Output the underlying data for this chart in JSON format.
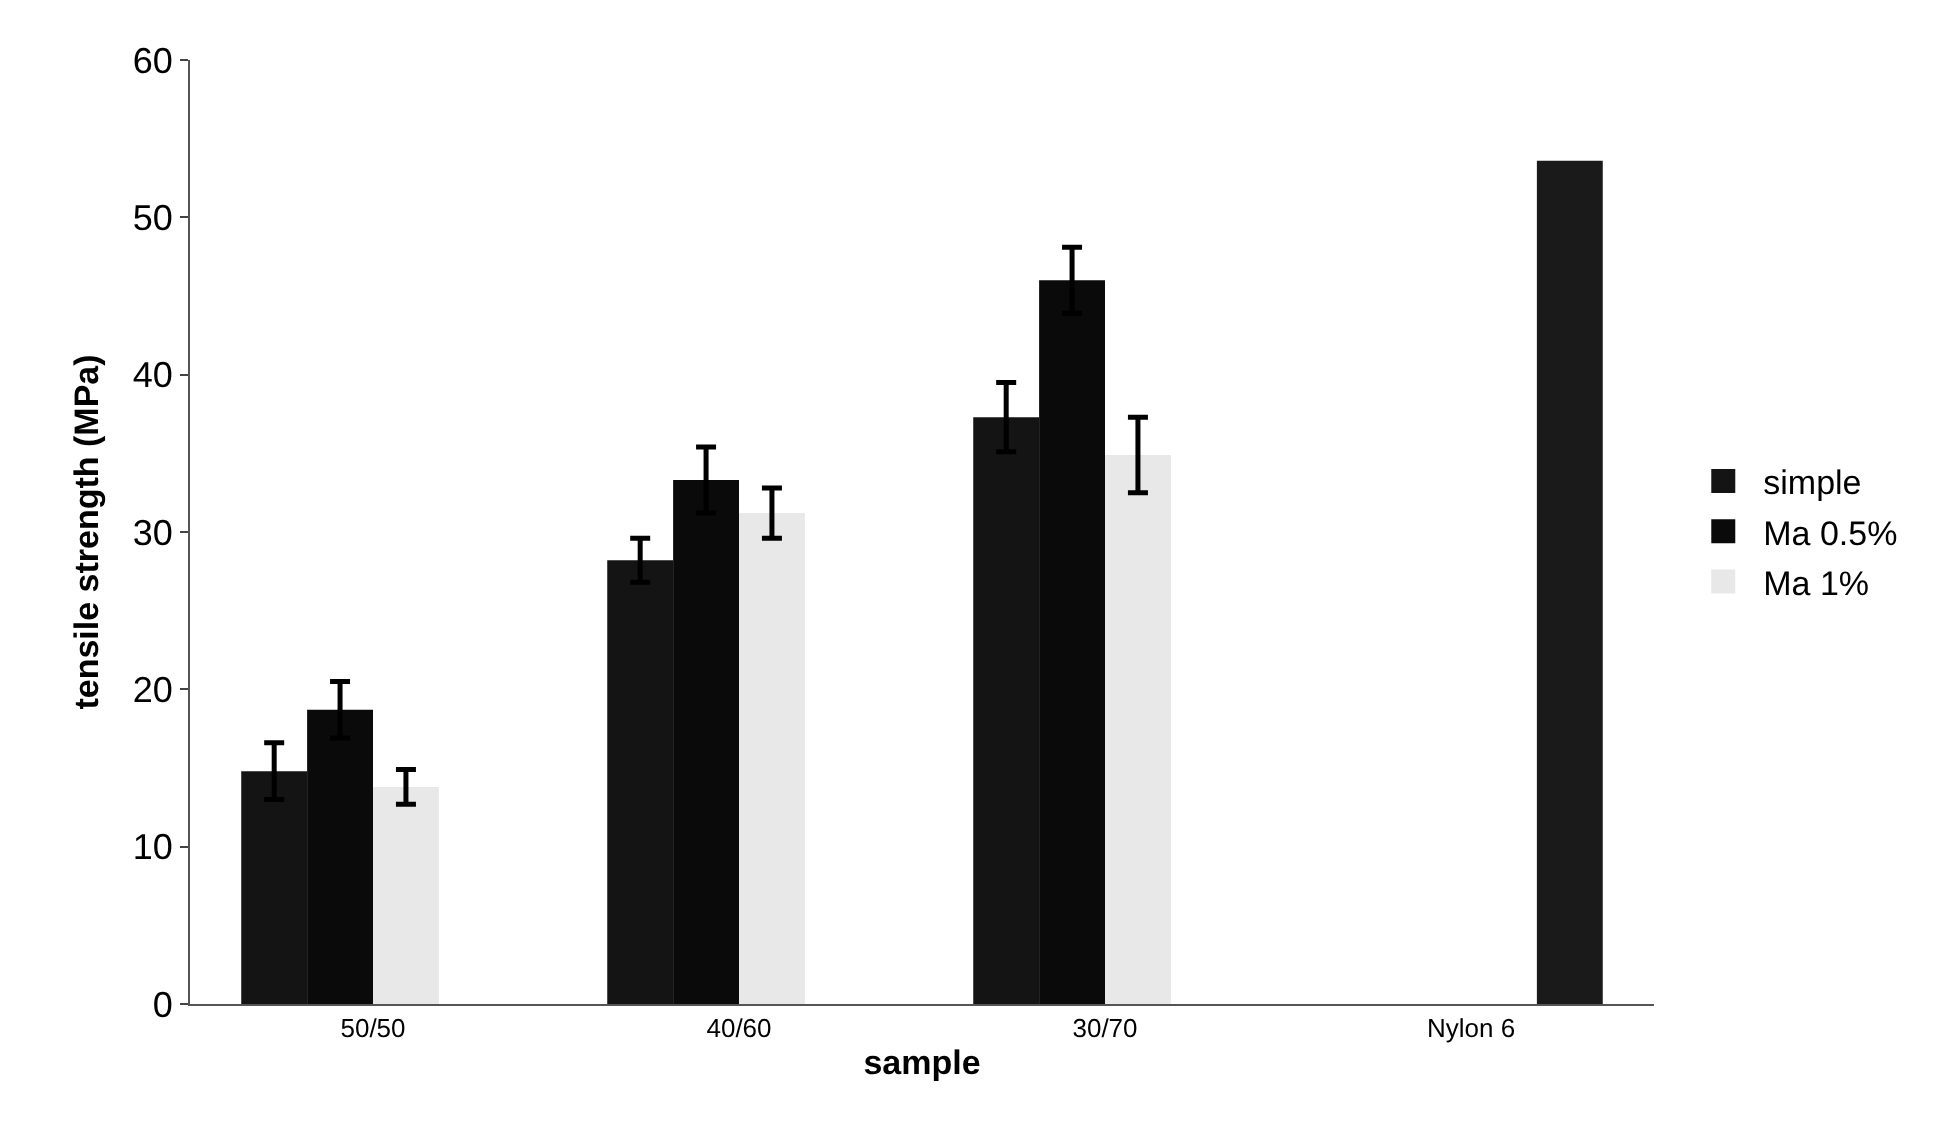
{
  "chart_data": {
    "type": "bar",
    "xlabel": "sample",
    "ylabel": "tensile strength (MPa)",
    "categories": [
      "50/50",
      "40/60",
      "30/70",
      "Nylon 6"
    ],
    "series": [
      {
        "name": "simple",
        "color": "#141414",
        "values": [
          14.8,
          28.2,
          37.3,
          null
        ],
        "errors": [
          1.8,
          1.4,
          2.2,
          null
        ]
      },
      {
        "name": "Ma 0.5%",
        "color": "#0a0a0a",
        "values": [
          18.7,
          33.3,
          46.0,
          null
        ],
        "errors": [
          1.8,
          2.1,
          2.1,
          null
        ]
      },
      {
        "name": "Ma 1%",
        "color": "#e8e8e8",
        "values": [
          13.8,
          31.2,
          34.9,
          null
        ],
        "errors": [
          1.1,
          1.6,
          2.4,
          null
        ]
      },
      {
        "color": "#1a1a1a",
        "values": [
          null,
          null,
          null,
          53.6
        ]
      }
    ],
    "ylim": [
      0,
      60
    ],
    "yticks": [
      0,
      10,
      20,
      30,
      40,
      50,
      60
    ],
    "grid": false,
    "legend": "right"
  }
}
